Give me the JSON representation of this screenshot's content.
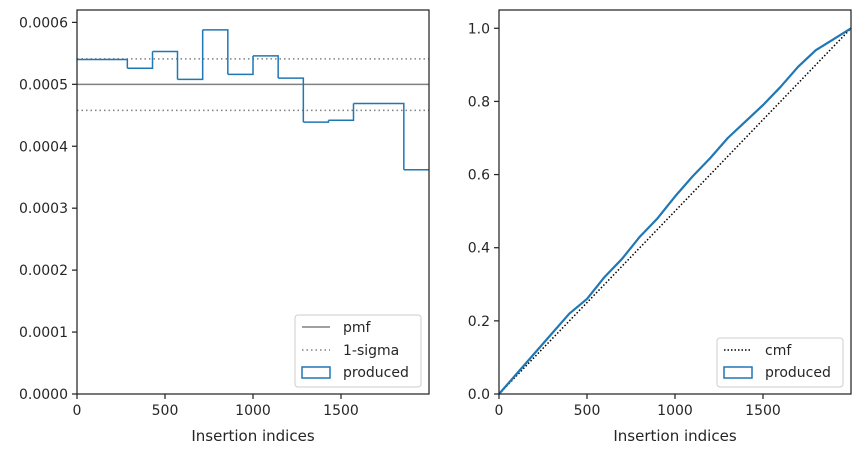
{
  "colors": {
    "produced": "#1f77b4",
    "pmf": "#808080",
    "sigma": "#808080",
    "cmf": "#000000",
    "axes": "#262626"
  },
  "chart_data": [
    {
      "type": "step-histogram",
      "xlabel": "Insertion indices",
      "ylabel": "",
      "xlim": [
        0,
        2000
      ],
      "ylim": [
        0,
        0.00062
      ],
      "xticks": [
        0,
        500,
        1000,
        1500
      ],
      "yticks": [
        0,
        0.0001,
        0.0002,
        0.0003,
        0.0004,
        0.0005,
        0.0006
      ],
      "xtick_labels": [
        "0",
        "500",
        "1000",
        "1500"
      ],
      "ytick_labels": [
        "0.0000",
        "0.0001",
        "0.0002",
        "0.0003",
        "0.0004",
        "0.0005",
        "0.0006"
      ],
      "bin_edges": [
        0,
        286,
        429,
        571,
        714,
        857,
        1000,
        1143,
        1286,
        1429,
        1571,
        1857,
        2000
      ],
      "produced_values": [
        0.00054,
        0.000526,
        0.000553,
        0.000508,
        0.000588,
        0.000516,
        0.000546,
        0.00051,
        0.000439,
        0.000442,
        0.000469,
        0.000362
      ],
      "pmf": 0.0005,
      "sigma_lines": [
        0.000541,
        0.000458
      ],
      "legend": {
        "position": "lower-right",
        "entries": [
          "pmf",
          "1-sigma",
          "produced"
        ]
      }
    },
    {
      "type": "line",
      "xlabel": "Insertion indices",
      "ylabel": "",
      "xlim": [
        0,
        2000
      ],
      "ylim": [
        0,
        1.05
      ],
      "xticks": [
        0,
        500,
        1000,
        1500
      ],
      "yticks": [
        0,
        0.2,
        0.4,
        0.6,
        0.8,
        1.0
      ],
      "xtick_labels": [
        "0",
        "500",
        "1000",
        "1500"
      ],
      "ytick_labels": [
        "0.0",
        "0.2",
        "0.4",
        "0.6",
        "0.8",
        "1.0"
      ],
      "cmf": {
        "x": [
          0,
          2000
        ],
        "y": [
          0,
          1
        ]
      },
      "produced": {
        "x": [
          0,
          100,
          200,
          300,
          400,
          500,
          600,
          700,
          800,
          900,
          1000,
          1100,
          1200,
          1300,
          1400,
          1500,
          1600,
          1700,
          1800,
          1900,
          2000
        ],
        "y": [
          0,
          0.055,
          0.11,
          0.165,
          0.22,
          0.26,
          0.32,
          0.37,
          0.43,
          0.48,
          0.54,
          0.595,
          0.645,
          0.7,
          0.745,
          0.79,
          0.84,
          0.895,
          0.94,
          0.97,
          1.0
        ]
      },
      "legend": {
        "position": "lower-right",
        "entries": [
          "cmf",
          "produced"
        ]
      }
    }
  ]
}
